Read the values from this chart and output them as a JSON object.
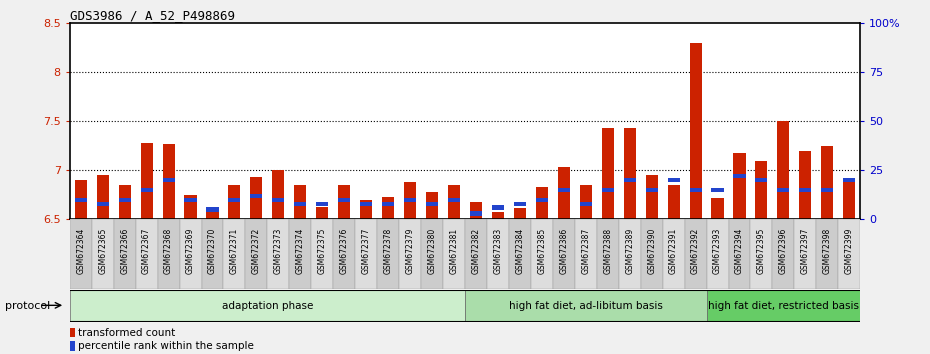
{
  "title": "GDS3986 / A_52_P498869",
  "ylim_left": [
    6.5,
    8.5
  ],
  "ylim_right": [
    0,
    100
  ],
  "bar_color": "#cc2200",
  "blue_color": "#2244cc",
  "bg_color": "#f0f0f0",
  "plot_bg": "#ffffff",
  "samples": [
    "GSM672364",
    "GSM672365",
    "GSM672366",
    "GSM672367",
    "GSM672368",
    "GSM672369",
    "GSM672370",
    "GSM672371",
    "GSM672372",
    "GSM672373",
    "GSM672374",
    "GSM672375",
    "GSM672376",
    "GSM672377",
    "GSM672378",
    "GSM672379",
    "GSM672380",
    "GSM672381",
    "GSM672382",
    "GSM672383",
    "GSM672384",
    "GSM672385",
    "GSM672386",
    "GSM672387",
    "GSM672388",
    "GSM672389",
    "GSM672390",
    "GSM672391",
    "GSM672392",
    "GSM672393",
    "GSM672394",
    "GSM672395",
    "GSM672396",
    "GSM672397",
    "GSM672398",
    "GSM672399"
  ],
  "red_values": [
    6.9,
    6.95,
    6.85,
    7.28,
    7.27,
    6.75,
    6.62,
    6.85,
    6.93,
    7.0,
    6.85,
    6.63,
    6.85,
    6.7,
    6.73,
    6.88,
    6.78,
    6.85,
    6.68,
    6.58,
    6.62,
    6.83,
    7.03,
    6.85,
    7.43,
    7.43,
    6.95,
    6.85,
    8.3,
    6.72,
    7.18,
    7.1,
    7.5,
    7.2,
    7.25,
    6.88
  ],
  "blue_pct": [
    10,
    8,
    10,
    15,
    20,
    10,
    5,
    10,
    12,
    10,
    8,
    8,
    10,
    8,
    8,
    10,
    8,
    10,
    3,
    6,
    8,
    10,
    15,
    8,
    15,
    20,
    15,
    20,
    15,
    15,
    22,
    20,
    15,
    15,
    15,
    20
  ],
  "groups": [
    {
      "label": "adaptation phase",
      "start": 0,
      "end": 18,
      "color": "#cceecc"
    },
    {
      "label": "high fat diet, ad-libitum basis",
      "start": 18,
      "end": 29,
      "color": "#aaddaa"
    },
    {
      "label": "high fat diet, restricted basis",
      "start": 29,
      "end": 36,
      "color": "#66cc66"
    }
  ],
  "legend_red": "transformed count",
  "legend_blue": "percentile rank within the sample",
  "protocol_label": "protocol"
}
